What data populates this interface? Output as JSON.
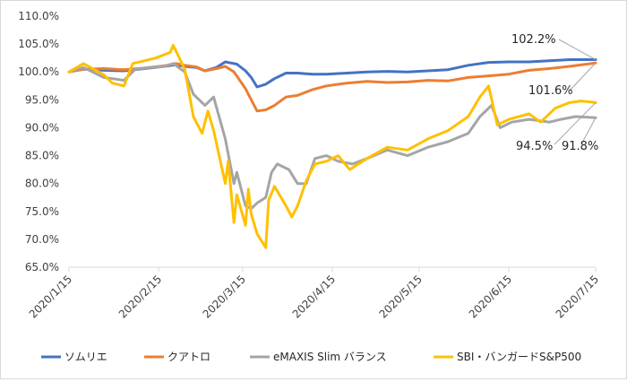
{
  "chart_data": {
    "type": "line",
    "title": "",
    "xlabel": "",
    "ylabel": "",
    "ylim": [
      65.0,
      110.0
    ],
    "y_ticks": [
      "65.0%",
      "70.0%",
      "75.0%",
      "80.0%",
      "85.0%",
      "90.0%",
      "95.0%",
      "100.0%",
      "105.0%",
      "110.0%"
    ],
    "x_range": [
      "2020-01-15",
      "2020-07-15"
    ],
    "x_ticks": [
      "2020/1/15",
      "2020/2/15",
      "2020/3/15",
      "2020/4/15",
      "2020/5/15",
      "2020/6/15",
      "2020/7/15"
    ],
    "grid": false,
    "legend_position": "bottom",
    "series": [
      {
        "name": "ソムリエ",
        "color": "#4472C4",
        "points": [
          [
            "2020-01-15",
            100.0
          ],
          [
            "2020-01-20",
            100.5
          ],
          [
            "2020-01-27",
            100.3
          ],
          [
            "2020-02-03",
            100.2
          ],
          [
            "2020-02-10",
            100.6
          ],
          [
            "2020-02-17",
            101.0
          ],
          [
            "2020-02-21",
            101.3
          ],
          [
            "2020-02-24",
            101.0
          ],
          [
            "2020-02-28",
            100.8
          ],
          [
            "2020-03-02",
            100.2
          ],
          [
            "2020-03-06",
            100.8
          ],
          [
            "2020-03-09",
            101.8
          ],
          [
            "2020-03-13",
            101.4
          ],
          [
            "2020-03-16",
            100.2
          ],
          [
            "2020-03-18",
            99.0
          ],
          [
            "2020-03-20",
            97.3
          ],
          [
            "2020-03-23",
            97.8
          ],
          [
            "2020-03-26",
            98.8
          ],
          [
            "2020-03-30",
            99.8
          ],
          [
            "2020-04-03",
            99.8
          ],
          [
            "2020-04-08",
            99.6
          ],
          [
            "2020-04-13",
            99.6
          ],
          [
            "2020-04-20",
            99.8
          ],
          [
            "2020-04-27",
            100.0
          ],
          [
            "2020-05-04",
            100.1
          ],
          [
            "2020-05-11",
            100.0
          ],
          [
            "2020-05-18",
            100.2
          ],
          [
            "2020-05-25",
            100.4
          ],
          [
            "2020-06-01",
            101.2
          ],
          [
            "2020-06-08",
            101.7
          ],
          [
            "2020-06-15",
            101.8
          ],
          [
            "2020-06-22",
            101.8
          ],
          [
            "2020-06-29",
            102.0
          ],
          [
            "2020-07-06",
            102.2
          ],
          [
            "2020-07-15",
            102.2
          ]
        ]
      },
      {
        "name": "クアトロ",
        "color": "#ED7D31",
        "points": [
          [
            "2020-01-15",
            100.0
          ],
          [
            "2020-01-20",
            100.5
          ],
          [
            "2020-01-27",
            100.6
          ],
          [
            "2020-02-03",
            100.4
          ],
          [
            "2020-02-10",
            100.7
          ],
          [
            "2020-02-17",
            101.1
          ],
          [
            "2020-02-21",
            101.5
          ],
          [
            "2020-02-24",
            101.2
          ],
          [
            "2020-02-28",
            100.9
          ],
          [
            "2020-03-02",
            100.2
          ],
          [
            "2020-03-06",
            100.6
          ],
          [
            "2020-03-09",
            101.0
          ],
          [
            "2020-03-12",
            100.0
          ],
          [
            "2020-03-16",
            97.0
          ],
          [
            "2020-03-18",
            95.0
          ],
          [
            "2020-03-20",
            93.0
          ],
          [
            "2020-03-23",
            93.2
          ],
          [
            "2020-03-26",
            94.0
          ],
          [
            "2020-03-30",
            95.5
          ],
          [
            "2020-04-03",
            95.8
          ],
          [
            "2020-04-08",
            96.8
          ],
          [
            "2020-04-13",
            97.5
          ],
          [
            "2020-04-20",
            98.0
          ],
          [
            "2020-04-27",
            98.3
          ],
          [
            "2020-05-04",
            98.1
          ],
          [
            "2020-05-11",
            98.2
          ],
          [
            "2020-05-18",
            98.5
          ],
          [
            "2020-05-25",
            98.4
          ],
          [
            "2020-06-01",
            99.0
          ],
          [
            "2020-06-08",
            99.3
          ],
          [
            "2020-06-15",
            99.6
          ],
          [
            "2020-06-22",
            100.3
          ],
          [
            "2020-06-29",
            100.6
          ],
          [
            "2020-07-06",
            101.0
          ],
          [
            "2020-07-15",
            101.6
          ]
        ]
      },
      {
        "name": "eMAXIS Slim バランス",
        "color": "#A5A5A5",
        "points": [
          [
            "2020-01-15",
            100.0
          ],
          [
            "2020-01-20",
            100.8
          ],
          [
            "2020-01-27",
            99.0
          ],
          [
            "2020-01-30",
            98.8
          ],
          [
            "2020-02-03",
            98.5
          ],
          [
            "2020-02-07",
            100.5
          ],
          [
            "2020-02-12",
            100.8
          ],
          [
            "2020-02-17",
            101.0
          ],
          [
            "2020-02-20",
            101.5
          ],
          [
            "2020-02-24",
            100.0
          ],
          [
            "2020-02-27",
            96.0
          ],
          [
            "2020-03-02",
            94.0
          ],
          [
            "2020-03-05",
            95.5
          ],
          [
            "2020-03-09",
            88.0
          ],
          [
            "2020-03-12",
            80.0
          ],
          [
            "2020-03-13",
            82.0
          ],
          [
            "2020-03-16",
            76.0
          ],
          [
            "2020-03-18",
            75.5
          ],
          [
            "2020-03-20",
            76.5
          ],
          [
            "2020-03-23",
            77.5
          ],
          [
            "2020-03-25",
            82.0
          ],
          [
            "2020-03-27",
            83.5
          ],
          [
            "2020-03-31",
            82.5
          ],
          [
            "2020-04-03",
            80.0
          ],
          [
            "2020-04-06",
            80.0
          ],
          [
            "2020-04-09",
            84.5
          ],
          [
            "2020-04-13",
            85.0
          ],
          [
            "2020-04-17",
            84.0
          ],
          [
            "2020-04-22",
            83.5
          ],
          [
            "2020-04-27",
            84.5
          ],
          [
            "2020-05-04",
            86.0
          ],
          [
            "2020-05-11",
            85.0
          ],
          [
            "2020-05-18",
            86.5
          ],
          [
            "2020-05-25",
            87.5
          ],
          [
            "2020-06-01",
            89.0
          ],
          [
            "2020-06-05",
            92.0
          ],
          [
            "2020-06-09",
            94.0
          ],
          [
            "2020-06-12",
            90.0
          ],
          [
            "2020-06-16",
            91.0
          ],
          [
            "2020-06-22",
            91.5
          ],
          [
            "2020-06-29",
            91.0
          ],
          [
            "2020-07-03",
            91.5
          ],
          [
            "2020-07-08",
            92.0
          ],
          [
            "2020-07-15",
            91.8
          ]
        ]
      },
      {
        "name": "SBI・バンガードS&P500",
        "color": "#FFC000",
        "points": [
          [
            "2020-01-15",
            100.0
          ],
          [
            "2020-01-20",
            101.5
          ],
          [
            "2020-01-27",
            99.5
          ],
          [
            "2020-01-30",
            98.0
          ],
          [
            "2020-02-03",
            97.5
          ],
          [
            "2020-02-06",
            101.5
          ],
          [
            "2020-02-10",
            102.0
          ],
          [
            "2020-02-14",
            102.5
          ],
          [
            "2020-02-19",
            103.5
          ],
          [
            "2020-02-20",
            104.8
          ],
          [
            "2020-02-24",
            100.5
          ],
          [
            "2020-02-27",
            92.0
          ],
          [
            "2020-03-01",
            89.0
          ],
          [
            "2020-03-03",
            93.0
          ],
          [
            "2020-03-05",
            89.5
          ],
          [
            "2020-03-09",
            80.0
          ],
          [
            "2020-03-10",
            84.0
          ],
          [
            "2020-03-12",
            73.0
          ],
          [
            "2020-03-13",
            78.0
          ],
          [
            "2020-03-16",
            72.5
          ],
          [
            "2020-03-17",
            79.0
          ],
          [
            "2020-03-18",
            74.5
          ],
          [
            "2020-03-20",
            71.0
          ],
          [
            "2020-03-23",
            68.5
          ],
          [
            "2020-03-24",
            77.0
          ],
          [
            "2020-03-26",
            79.5
          ],
          [
            "2020-03-30",
            76.0
          ],
          [
            "2020-04-01",
            74.0
          ],
          [
            "2020-04-03",
            76.0
          ],
          [
            "2020-04-06",
            80.5
          ],
          [
            "2020-04-09",
            83.5
          ],
          [
            "2020-04-13",
            84.0
          ],
          [
            "2020-04-17",
            85.0
          ],
          [
            "2020-04-21",
            82.5
          ],
          [
            "2020-04-27",
            84.5
          ],
          [
            "2020-05-04",
            86.5
          ],
          [
            "2020-05-11",
            86.0
          ],
          [
            "2020-05-18",
            88.0
          ],
          [
            "2020-05-25",
            89.5
          ],
          [
            "2020-06-01",
            92.0
          ],
          [
            "2020-06-05",
            95.5
          ],
          [
            "2020-06-08",
            97.5
          ],
          [
            "2020-06-11",
            90.5
          ],
          [
            "2020-06-15",
            91.5
          ],
          [
            "2020-06-22",
            92.5
          ],
          [
            "2020-06-26",
            91.0
          ],
          [
            "2020-07-01",
            93.5
          ],
          [
            "2020-07-06",
            94.5
          ],
          [
            "2020-07-10",
            94.8
          ],
          [
            "2020-07-15",
            94.5
          ]
        ]
      }
    ],
    "annotations": [
      {
        "text": "102.2%",
        "series": 0
      },
      {
        "text": "101.6%",
        "series": 1
      },
      {
        "text": "94.5%",
        "series": 3
      },
      {
        "text": "91.8%",
        "series": 2
      }
    ]
  }
}
